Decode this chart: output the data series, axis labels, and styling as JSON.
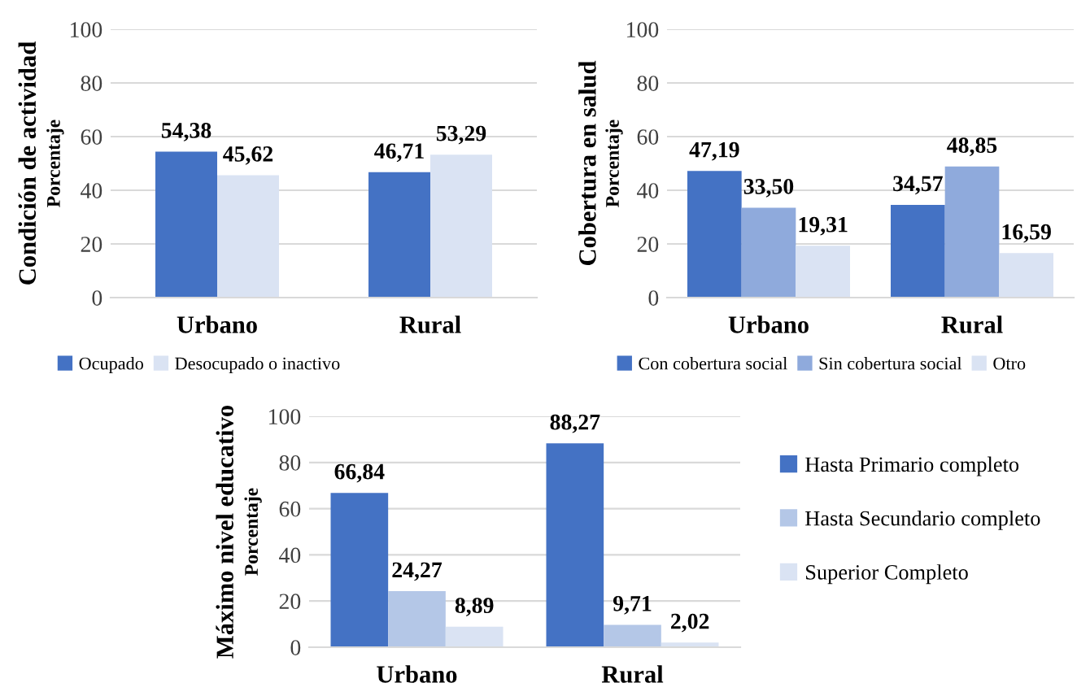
{
  "chart_data": [
    {
      "type": "bar",
      "ylabel": "Condición de actividad\nPorcentaje",
      "categories": [
        "Urbano",
        "Rural"
      ],
      "series": [
        {
          "name": "Ocupado",
          "color": "#4472c4",
          "values": [
            54.38,
            46.71
          ],
          "value_labels": [
            "54,38",
            "46,71"
          ]
        },
        {
          "name": "Desocupado o inactivo",
          "color": "#dae3f3",
          "values": [
            45.62,
            53.29
          ],
          "value_labels": [
            "45,62",
            "53,29"
          ]
        }
      ],
      "ylim": [
        0,
        100
      ],
      "yticks": [
        0,
        20,
        40,
        60,
        80,
        100
      ],
      "grid": "y",
      "legend": "bottom"
    },
    {
      "type": "bar",
      "ylabel": "Cobertura en salud\nPorcentaje",
      "categories": [
        "Urbano",
        "Rural"
      ],
      "series": [
        {
          "name": "Con cobertura social",
          "color": "#4472c4",
          "values": [
            47.19,
            34.57
          ],
          "value_labels": [
            "47,19",
            "34,57"
          ]
        },
        {
          "name": "Sin cobertura social",
          "color": "#8faadc",
          "values": [
            33.5,
            48.85
          ],
          "value_labels": [
            "33,50",
            "48,85"
          ]
        },
        {
          "name": "Otro",
          "color": "#dae3f3",
          "values": [
            19.31,
            16.59
          ],
          "value_labels": [
            "19,31",
            "16,59"
          ]
        }
      ],
      "ylim": [
        0,
        100
      ],
      "yticks": [
        0,
        20,
        40,
        60,
        80,
        100
      ],
      "grid": "y",
      "legend": "bottom"
    },
    {
      "type": "bar",
      "ylabel": "Máximo nivel educativo\nPorcentaje",
      "categories": [
        "Urbano",
        "Rural"
      ],
      "series": [
        {
          "name": "Hasta Primario completo",
          "color": "#4472c4",
          "values": [
            66.84,
            88.27
          ],
          "value_labels": [
            "66,84",
            "88,27"
          ]
        },
        {
          "name": "Hasta Secundario completo",
          "color": "#b4c7e7",
          "values": [
            24.27,
            9.71
          ],
          "value_labels": [
            "24,27",
            "9,71"
          ]
        },
        {
          "name": "Superior Completo",
          "color": "#dae3f3",
          "values": [
            8.89,
            2.02
          ],
          "value_labels": [
            "8,89",
            "2,02"
          ]
        }
      ],
      "ylim": [
        0,
        100
      ],
      "yticks": [
        0,
        20,
        40,
        60,
        80,
        100
      ],
      "grid": "y",
      "legend": "right"
    }
  ]
}
